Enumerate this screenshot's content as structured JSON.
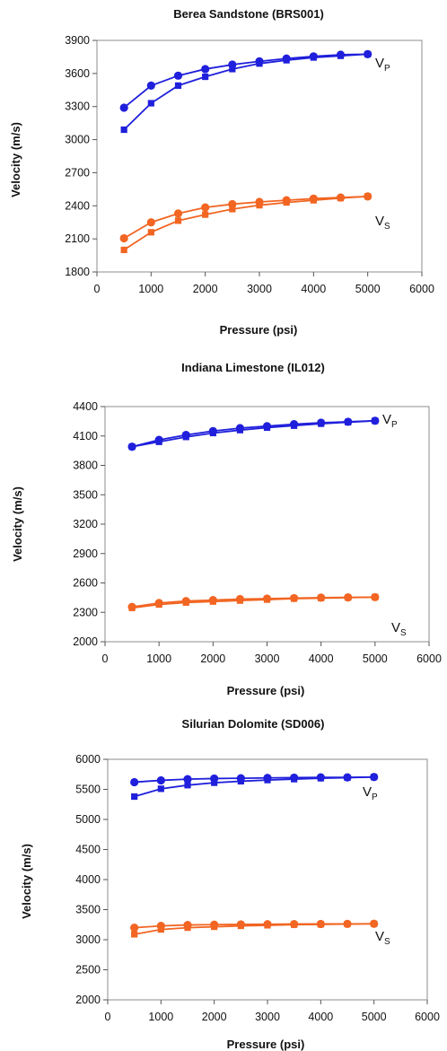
{
  "colors": {
    "vp": "#1f1fdc",
    "vs": "#f26522"
  },
  "chart_data": [
    {
      "type": "line",
      "title": "Berea Sandstone (BRS001)",
      "xlabel": "Pressure (psi)",
      "ylabel": "Velocity (m/s)",
      "xlim": [
        0,
        6000
      ],
      "ylim": [
        1800,
        3900
      ],
      "xticks": [
        0,
        1000,
        2000,
        3000,
        4000,
        5000,
        6000
      ],
      "yticks": [
        1800,
        2100,
        2400,
        2700,
        3000,
        3300,
        3600,
        3900
      ],
      "grid": false,
      "annotations": [
        {
          "base": "V",
          "sub": "P",
          "series": "vp"
        },
        {
          "base": "V",
          "sub": "S",
          "series": "vs"
        }
      ],
      "series": [
        {
          "kind": "vp",
          "marker": "circle",
          "x": [
            500,
            1000,
            1500,
            2000,
            2500,
            3000,
            3500,
            4000,
            4500,
            5000
          ],
          "y": [
            3290,
            3490,
            3580,
            3640,
            3680,
            3710,
            3735,
            3755,
            3770,
            3775
          ]
        },
        {
          "kind": "vp",
          "marker": "square",
          "x": [
            500,
            1000,
            1500,
            2000,
            2500,
            3000,
            3500,
            4000,
            4500,
            5000
          ],
          "y": [
            3090,
            3330,
            3490,
            3570,
            3640,
            3690,
            3720,
            3745,
            3760,
            3775
          ]
        },
        {
          "kind": "vs",
          "marker": "circle",
          "x": [
            500,
            1000,
            1500,
            2000,
            2500,
            3000,
            3500,
            4000,
            4500,
            5000
          ],
          "y": [
            2105,
            2250,
            2330,
            2385,
            2415,
            2435,
            2450,
            2465,
            2475,
            2485
          ]
        },
        {
          "kind": "vs",
          "marker": "square",
          "x": [
            500,
            1000,
            1500,
            2000,
            2500,
            3000,
            3500,
            4000,
            4500,
            5000
          ],
          "y": [
            2000,
            2160,
            2265,
            2320,
            2370,
            2405,
            2430,
            2450,
            2470,
            2485
          ]
        }
      ]
    },
    {
      "type": "line",
      "title": "Indiana Limestone (IL012)",
      "xlabel": "Pressure (psi)",
      "ylabel": "Velocity (m/s)",
      "xlim": [
        0,
        6000
      ],
      "ylim": [
        2000,
        4400
      ],
      "xticks": [
        0,
        1000,
        2000,
        3000,
        4000,
        5000,
        6000
      ],
      "yticks": [
        2000,
        2300,
        2600,
        2900,
        3200,
        3500,
        3800,
        4100,
        4400
      ],
      "grid": false,
      "annotations": [
        {
          "base": "V",
          "sub": "P",
          "series": "vp"
        },
        {
          "base": "V",
          "sub": "S",
          "series": "vs"
        }
      ],
      "series": [
        {
          "kind": "vp",
          "marker": "circle",
          "x": [
            500,
            1000,
            1500,
            2000,
            2500,
            3000,
            3500,
            4000,
            4500,
            5000
          ],
          "y": [
            3990,
            4060,
            4110,
            4150,
            4180,
            4200,
            4220,
            4235,
            4245,
            4255
          ]
        },
        {
          "kind": "vp",
          "marker": "square",
          "x": [
            500,
            1000,
            1500,
            2000,
            2500,
            3000,
            3500,
            4000,
            4500,
            5000
          ],
          "y": [
            3990,
            4040,
            4090,
            4130,
            4160,
            4185,
            4205,
            4225,
            4240,
            4255
          ]
        },
        {
          "kind": "vs",
          "marker": "circle",
          "x": [
            500,
            1000,
            1500,
            2000,
            2500,
            3000,
            3500,
            4000,
            4500,
            5000
          ],
          "y": [
            2355,
            2395,
            2415,
            2425,
            2435,
            2440,
            2445,
            2450,
            2452,
            2455
          ]
        },
        {
          "kind": "vs",
          "marker": "square",
          "x": [
            500,
            1000,
            1500,
            2000,
            2500,
            3000,
            3500,
            4000,
            4500,
            5000
          ],
          "y": [
            2345,
            2380,
            2400,
            2410,
            2420,
            2430,
            2440,
            2445,
            2450,
            2455
          ]
        }
      ]
    },
    {
      "type": "line",
      "title": "Silurian Dolomite (SD006)",
      "xlabel": "Pressure (psi)",
      "ylabel": "Velocity (m/s)",
      "xlim": [
        0,
        6000
      ],
      "ylim": [
        2000,
        6000
      ],
      "xticks": [
        0,
        1000,
        2000,
        3000,
        4000,
        5000,
        6000
      ],
      "yticks": [
        2000,
        2500,
        3000,
        3500,
        4000,
        4500,
        5000,
        5500,
        6000
      ],
      "grid": false,
      "annotations": [
        {
          "base": "V",
          "sub": "P",
          "series": "vp"
        },
        {
          "base": "V",
          "sub": "S",
          "series": "vs"
        }
      ],
      "series": [
        {
          "kind": "vp",
          "marker": "circle",
          "x": [
            500,
            1000,
            1500,
            2000,
            2500,
            3000,
            3500,
            4000,
            4500,
            5000
          ],
          "y": [
            5620,
            5650,
            5670,
            5680,
            5685,
            5690,
            5695,
            5700,
            5700,
            5705
          ]
        },
        {
          "kind": "vp",
          "marker": "square",
          "x": [
            500,
            1000,
            1500,
            2000,
            2500,
            3000,
            3500,
            4000,
            4500,
            5000
          ],
          "y": [
            5380,
            5510,
            5570,
            5610,
            5635,
            5655,
            5670,
            5685,
            5695,
            5705
          ]
        },
        {
          "kind": "vs",
          "marker": "circle",
          "x": [
            500,
            1000,
            1500,
            2000,
            2500,
            3000,
            3500,
            4000,
            4500,
            5000
          ],
          "y": [
            3200,
            3230,
            3245,
            3250,
            3255,
            3258,
            3260,
            3262,
            3263,
            3265
          ]
        },
        {
          "kind": "vs",
          "marker": "square",
          "x": [
            500,
            1000,
            1500,
            2000,
            2500,
            3000,
            3500,
            4000,
            4500,
            5000
          ],
          "y": [
            3090,
            3170,
            3200,
            3215,
            3230,
            3240,
            3250,
            3255,
            3260,
            3265
          ]
        }
      ]
    }
  ]
}
